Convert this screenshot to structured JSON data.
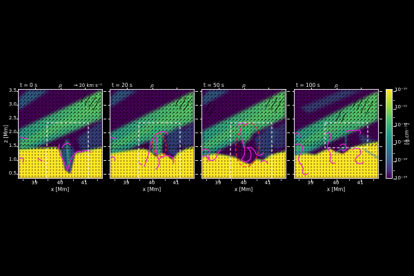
{
  "figure": {
    "bg": "#000000",
    "text_color": "#f0f0f0",
    "accent_colors": {
      "contour_magenta": "#eb1fd3",
      "ellipse_red": "#e8322d",
      "box_white": "#ffffff",
      "quiver_black": "#000000"
    }
  },
  "chart_data": {
    "type": "heatmap",
    "field": "density",
    "title": "ρ",
    "xlabel": "x [Mm]",
    "ylabel": "z [Mm]",
    "x_tick_labels": [
      "39",
      "40",
      "41"
    ],
    "y_tick_labels": [
      "3.5",
      "3.0",
      "2.5",
      "2.0",
      "1.5",
      "1.0",
      "0.5"
    ],
    "x_range_mm": [
      38.4,
      41.7
    ],
    "z_range_mm": [
      0.35,
      3.6
    ],
    "colormap": "viridis",
    "scale": "log",
    "panels": [
      {
        "time_s": 0,
        "time_label": "t = 0 s",
        "title": "ρ",
        "quiver_key_label": "20 km s⁻¹",
        "white_dashed_box": {
          "x_mm": [
            39.5,
            41.15
          ],
          "z_mm": [
            0.35,
            2.35
          ]
        },
        "red_dashed_ellipse": null
      },
      {
        "time_s": 20,
        "time_label": "t = 20 s",
        "title": "ρ",
        "white_dashed_box": {
          "x_mm": [
            39.5,
            41.15
          ],
          "z_mm": [
            0.35,
            2.35
          ]
        },
        "red_dashed_ellipse": {
          "cx_mm": 40.05,
          "cz_mm": 1.55,
          "rx_mm": 0.27,
          "rz_mm": 0.45
        }
      },
      {
        "time_s": 50,
        "time_label": "t = 50 s",
        "title": "ρ",
        "white_dashed_box": {
          "x_mm": [
            39.5,
            41.15
          ],
          "z_mm": [
            0.35,
            2.35
          ]
        },
        "red_dashed_ellipse": {
          "cx_mm": 40.15,
          "cz_mm": 1.55,
          "rx_mm": 0.48,
          "rz_mm": 0.82
        }
      },
      {
        "time_s": 100,
        "time_label": "t = 100 s",
        "title": "ρ",
        "white_dashed_box": {
          "x_mm": [
            39.55,
            41.25
          ],
          "z_mm": [
            1.45,
            2.35
          ]
        },
        "red_dashed_ellipse": null
      }
    ],
    "quiver_key": {
      "label": "20 km s⁻¹",
      "arrow_icon": "quiver-key-arrow",
      "arrow_glyph": "→"
    },
    "colorbar": {
      "label": "[g.cm⁻³]",
      "tick_labels": [
        "10⁻¹⁰",
        "10⁻¹¹",
        "10⁻¹²",
        "10⁻¹³",
        "10⁻¹⁴",
        "10⁻¹⁵"
      ],
      "orientation": "vertical",
      "position": "right"
    }
  }
}
